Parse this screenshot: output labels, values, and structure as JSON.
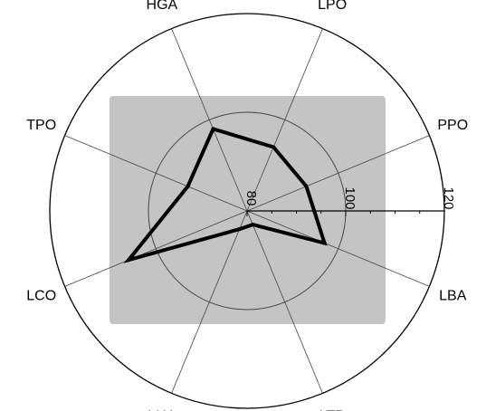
{
  "chart_data": {
    "type": "radar",
    "axes": [
      "LPO",
      "PPO",
      "LBA",
      "LTR",
      "LHA",
      "LCO",
      "TPO",
      "HGA"
    ],
    "values": [
      94,
      93,
      97,
      83,
      84,
      106,
      93,
      98
    ],
    "r_ticks": [
      80,
      100,
      120
    ],
    "r_range": [
      80,
      120
    ],
    "legend": "none",
    "colors": {
      "background_box": "#c4c4c4",
      "outer_circle": "#000000",
      "grid": "#444444",
      "series_line": "#000000"
    }
  }
}
